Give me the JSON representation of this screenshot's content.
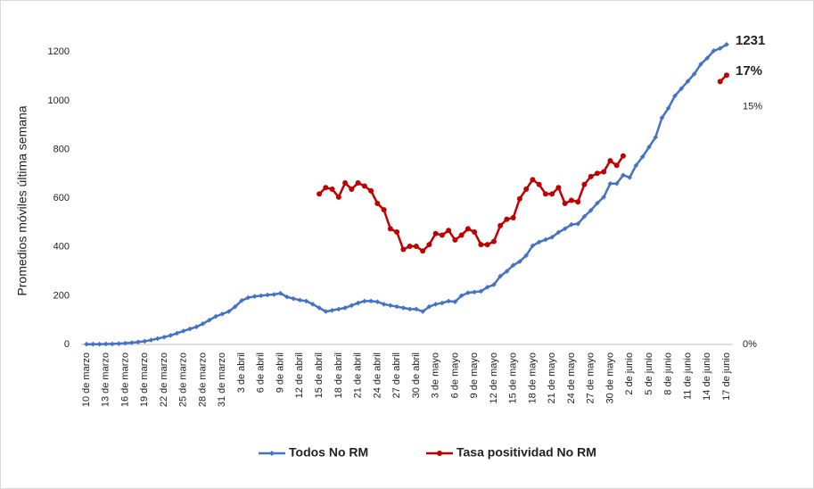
{
  "chart_data": {
    "type": "line",
    "y_label": "Promedios móviles última semana",
    "categories": [
      "10 de marzo",
      null,
      null,
      "13 de marzo",
      null,
      null,
      "16 de marzo",
      null,
      null,
      "19 de marzo",
      null,
      null,
      "22 de marzo",
      null,
      null,
      "25 de marzo",
      null,
      null,
      "28 de marzo",
      null,
      null,
      "31 de marzo",
      null,
      null,
      "3 de abril",
      null,
      null,
      "6 de abril",
      null,
      null,
      "9 de abril",
      null,
      null,
      "12 de abril",
      null,
      null,
      "15 de abril",
      null,
      null,
      "18 de abril",
      null,
      null,
      "21 de abril",
      null,
      null,
      "24 de abril",
      null,
      null,
      "27 de abril",
      null,
      null,
      "30 de abril",
      null,
      null,
      "3 de mayo",
      null,
      null,
      "6 de mayo",
      null,
      null,
      "9 de mayo",
      null,
      null,
      "12 de mayo",
      null,
      null,
      "15 de mayo",
      null,
      null,
      "18 de mayo",
      null,
      null,
      "21 de mayo",
      null,
      null,
      "24 de mayo",
      null,
      null,
      "27 de mayo",
      null,
      null,
      "30 de mayo",
      null,
      null,
      "2 de junio",
      null,
      null,
      "5 de junio",
      null,
      null,
      "8 de junio",
      null,
      null,
      "11 de junio",
      null,
      null,
      "14 de junio",
      null,
      null,
      "17 de junio"
    ],
    "series": [
      {
        "name": "Todos No RM",
        "color": "#4472c4",
        "values": [
          1,
          1,
          1,
          2,
          2,
          3,
          5,
          7,
          10,
          13,
          18,
          24,
          30,
          37,
          46,
          55,
          64,
          72,
          85,
          100,
          115,
          125,
          135,
          155,
          180,
          192,
          197,
          200,
          203,
          205,
          210,
          195,
          188,
          182,
          178,
          165,
          150,
          135,
          140,
          145,
          150,
          160,
          170,
          178,
          178,
          175,
          165,
          160,
          155,
          150,
          145,
          145,
          135,
          155,
          165,
          170,
          178,
          175,
          200,
          212,
          215,
          218,
          235,
          245,
          280,
          300,
          325,
          340,
          365,
          405,
          420,
          430,
          440,
          460,
          475,
          492,
          495,
          525,
          550,
          580,
          605,
          660,
          660,
          695,
          685,
          735,
          770,
          810,
          850,
          930,
          970,
          1020,
          1050,
          1080,
          1110,
          1150,
          1175,
          1205,
          1215,
          1231
        ]
      },
      {
        "name": "Tasa positividad No RM",
        "color": "#c00000",
        "axis": "y2",
        "values": [
          null,
          null,
          null,
          null,
          null,
          null,
          null,
          null,
          null,
          null,
          null,
          null,
          null,
          null,
          null,
          null,
          null,
          null,
          null,
          null,
          null,
          null,
          null,
          null,
          null,
          null,
          null,
          null,
          null,
          null,
          null,
          null,
          null,
          null,
          null,
          null,
          9.5,
          9.9,
          9.8,
          9.3,
          10.2,
          9.8,
          10.2,
          10.0,
          9.7,
          8.9,
          8.5,
          7.3,
          7.1,
          6.0,
          6.2,
          6.2,
          5.9,
          6.3,
          7.0,
          6.9,
          7.2,
          6.6,
          6.9,
          7.3,
          7.1,
          6.3,
          6.3,
          6.5,
          7.5,
          7.9,
          8.0,
          9.2,
          9.8,
          10.4,
          10.1,
          9.5,
          9.5,
          9.9,
          8.9,
          9.1,
          9.0,
          10.1,
          10.6,
          10.8,
          10.9,
          11.6,
          11.3,
          11.9,
          null,
          null,
          null,
          null,
          null,
          null,
          null,
          null,
          null,
          null,
          null,
          null,
          null,
          null,
          16.6,
          17
        ],
        "value_labels": [
          null,
          null,
          null,
          null,
          null,
          null,
          null,
          null,
          null,
          null,
          null,
          null,
          null,
          null,
          null,
          null,
          null,
          null,
          null,
          null,
          null,
          null,
          null,
          null,
          null,
          null,
          null,
          null,
          null,
          null,
          null,
          null,
          null,
          null,
          null,
          null,
          null,
          null,
          null,
          null,
          null,
          null,
          null,
          null,
          null,
          null,
          null,
          null,
          null,
          null,
          null,
          null,
          null,
          null,
          null,
          null,
          null,
          null,
          null,
          null,
          null,
          null,
          null,
          null,
          null,
          null,
          null,
          null,
          null,
          null,
          null,
          null,
          null,
          null,
          null,
          null,
          null,
          null,
          null,
          null,
          null,
          null,
          null,
          null,
          null,
          null,
          null,
          null,
          null,
          null,
          null,
          null,
          null,
          null,
          null,
          null,
          null,
          null,
          null,
          "17%"
        ]
      }
    ],
    "ylim": [
      0,
      1300
    ],
    "yticks": [
      0,
      200,
      400,
      600,
      800,
      1000,
      1200
    ],
    "y2lim": [
      0,
      20
    ],
    "y2ticks": [
      {
        "value": 0,
        "label": "0%"
      },
      {
        "value": 15,
        "label": "15%"
      }
    ],
    "grid": false,
    "legend": "bottom"
  }
}
